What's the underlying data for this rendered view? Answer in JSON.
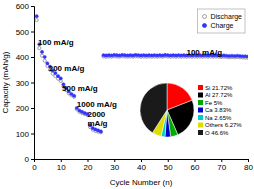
{
  "chart_data": [
    {
      "type": "scatter",
      "xlabel": "Cycle Number (n)",
      "ylabel": "Capacity (mAh/g)",
      "xlim": [
        0,
        80
      ],
      "ylim": [
        0,
        600
      ],
      "xticks": [
        0,
        10,
        20,
        30,
        40,
        50,
        60,
        70,
        80
      ],
      "yticks": [
        0,
        100,
        200,
        300,
        400,
        500,
        600
      ],
      "legend": "upper right",
      "x": [
        1,
        2,
        3,
        4,
        5,
        6,
        7,
        8,
        9,
        10,
        11,
        12,
        13,
        14,
        15,
        16,
        17,
        18,
        19,
        20,
        21,
        22,
        23,
        24,
        25,
        26,
        27,
        28,
        29,
        30,
        31,
        32,
        33,
        34,
        35,
        36,
        37,
        38,
        39,
        40,
        41,
        42,
        43,
        44,
        45,
        46,
        47,
        48,
        49,
        50,
        51,
        52,
        53,
        54,
        55,
        56,
        57,
        58,
        59,
        60,
        61,
        62,
        63,
        64,
        65,
        66,
        67,
        68,
        69,
        70,
        71,
        72,
        73,
        74,
        75,
        76,
        77,
        78,
        79,
        80
      ],
      "series": [
        {
          "name": "Discharge",
          "color": "#888888",
          "marker": "open_circle",
          "values": [
            545,
            435,
            405,
            385,
            365,
            350,
            335,
            325,
            315,
            306,
            285,
            270,
            258,
            250,
            244,
            195,
            185,
            180,
            176,
            172,
            125,
            115,
            110,
            107,
            105,
            402,
            401,
            402,
            401,
            403,
            402,
            401,
            403,
            402,
            401,
            402,
            401,
            403,
            402,
            401,
            402,
            401,
            402,
            401,
            402,
            401,
            402,
            401,
            403,
            402,
            401,
            402,
            401,
            402,
            401,
            402,
            401,
            402,
            401,
            402,
            401,
            402,
            401,
            402,
            401,
            402,
            401,
            402,
            401,
            400,
            401,
            400,
            399,
            400,
            399,
            400,
            399,
            398,
            398,
            397
          ]
        },
        {
          "name": "Charge",
          "color": "#3333ff",
          "marker": "circle",
          "values": [
            560,
            450,
            420,
            400,
            375,
            362,
            347,
            337,
            325,
            316,
            293,
            278,
            265,
            255,
            248,
            200,
            190,
            185,
            180,
            176,
            132,
            121,
            116,
            112,
            108,
            407,
            406,
            407,
            406,
            408,
            407,
            406,
            408,
            407,
            406,
            407,
            406,
            408,
            407,
            406,
            407,
            406,
            407,
            406,
            407,
            406,
            407,
            406,
            408,
            407,
            406,
            407,
            406,
            407,
            406,
            407,
            406,
            407,
            406,
            407,
            406,
            407,
            406,
            407,
            406,
            407,
            406,
            407,
            406,
            405,
            406,
            405,
            404,
            405,
            404,
            405,
            404,
            403,
            403,
            402
          ]
        },
        {
          "type": "line",
          "color": "#3333ff",
          "line_style": "solid",
          "values": [
            null,
            null,
            null,
            null,
            null,
            null,
            null,
            null,
            null,
            null,
            null,
            null,
            null,
            null,
            null,
            null,
            null,
            null,
            null,
            null,
            null,
            null,
            null,
            null,
            null,
            407,
            406,
            407,
            406,
            408,
            407,
            406,
            408,
            407,
            406,
            407,
            406,
            408,
            407,
            406,
            407,
            406,
            407,
            406,
            407,
            406,
            407,
            406,
            408,
            407,
            406,
            407,
            406,
            407,
            406,
            407,
            406,
            407,
            406,
            407,
            406,
            407,
            406,
            407,
            406,
            407,
            406,
            407,
            406,
            405,
            406,
            405,
            404,
            405,
            404,
            405,
            404,
            403,
            403,
            402
          ]
        }
      ],
      "annotations": [
        {
          "text": "100 mA/g",
          "x": 1.5,
          "y": 460
        },
        {
          "text": "200 mA/g",
          "x": 5.5,
          "y": 355
        },
        {
          "text": "500 mA/g",
          "x": 10.5,
          "y": 278
        },
        {
          "text": "1000 mA/g",
          "x": 16,
          "y": 215
        },
        {
          "text": "2000\nmA/g",
          "x": 20,
          "y": 158
        },
        {
          "text": "100 mA/g",
          "x": 57,
          "y": 420
        }
      ]
    },
    {
      "type": "pie",
      "categories": [
        "Si 21.72%",
        "Al 27.72%",
        "Fe 5%",
        "Ca 3.83%",
        "Na 2.65%",
        "Others 6.27%",
        "O 46.6%"
      ],
      "values": [
        21.72,
        27.72,
        5.0,
        3.83,
        2.65,
        6.27,
        46.6
      ],
      "colors": [
        "#ff0000",
        "#000000",
        "#00aa00",
        "#0000cc",
        "#00cccc",
        "#dddd00",
        "#1a1a1a"
      ]
    }
  ]
}
